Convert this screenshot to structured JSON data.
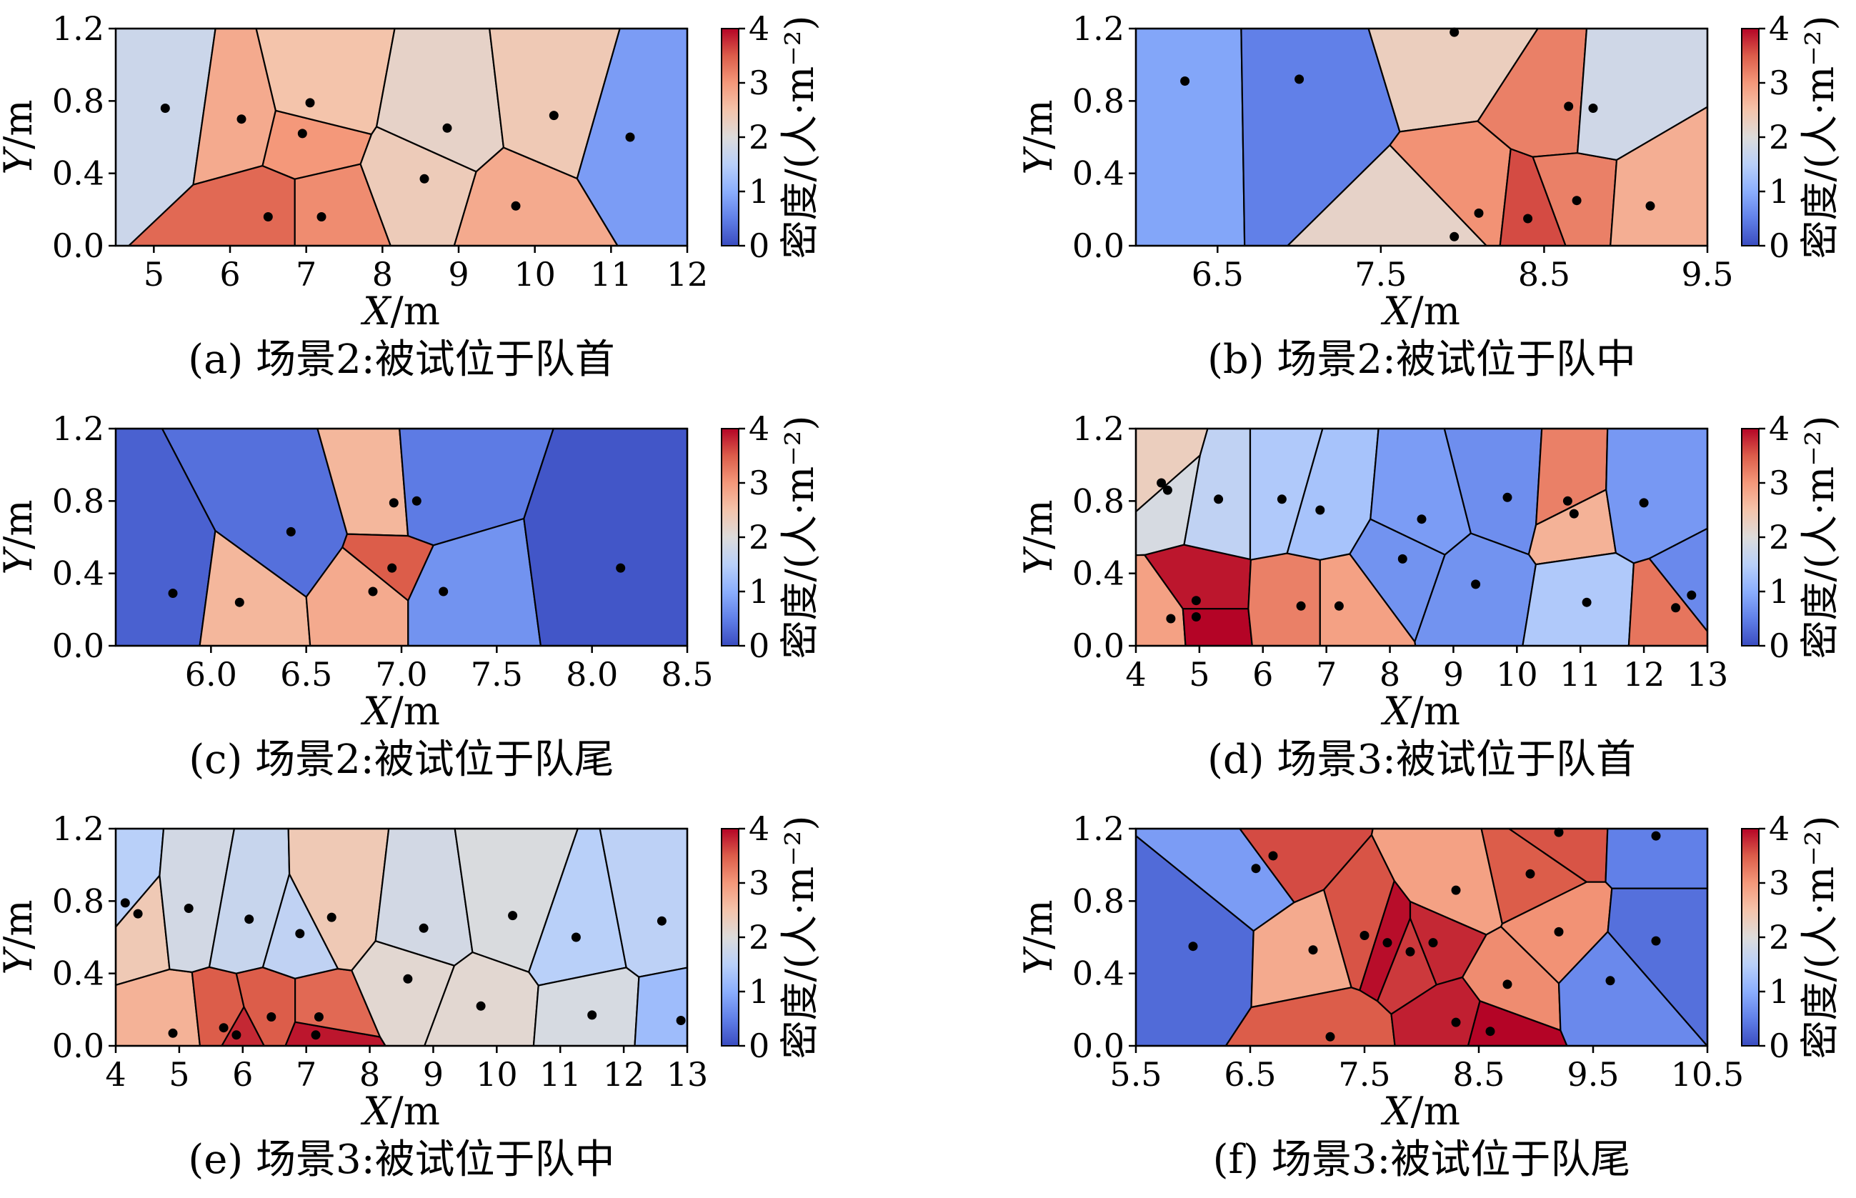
{
  "colormap": {
    "name": "coolwarm",
    "stops": [
      "#3a4cc0",
      "#6180e8",
      "#8caffd",
      "#b9d0f9",
      "#dddcdb",
      "#f4c4ab",
      "#f4987a",
      "#dc5d4a",
      "#b40426"
    ]
  },
  "chart_data": [
    {
      "type": "voronoi",
      "caption": "(a) 场景2:被试位于队首",
      "xlabel": "X/m",
      "ylabel": "Y/m",
      "xlim": [
        4.5,
        12
      ],
      "ylim": [
        0,
        1.2
      ],
      "xticks": [
        "5",
        "6",
        "7",
        "8",
        "9",
        "10",
        "11",
        "12"
      ],
      "yticks": [
        "0.0",
        "0.4",
        "0.8",
        "1.2"
      ],
      "colorbar": {
        "label": "密度/(人·m⁻²)",
        "range": [
          0,
          4
        ],
        "ticks": [
          "0",
          "1",
          "2",
          "3",
          "4"
        ]
      },
      "points": [
        {
          "x": 5.15,
          "y": 0.76,
          "density": 1.75
        },
        {
          "x": 6.15,
          "y": 0.7,
          "density": 2.8
        },
        {
          "x": 6.5,
          "y": 0.16,
          "density": 3.4
        },
        {
          "x": 6.95,
          "y": 0.62,
          "density": 3.0
        },
        {
          "x": 7.05,
          "y": 0.79,
          "density": 2.5
        },
        {
          "x": 7.2,
          "y": 0.16,
          "density": 3.1
        },
        {
          "x": 8.55,
          "y": 0.37,
          "density": 2.35
        },
        {
          "x": 8.85,
          "y": 0.65,
          "density": 2.2
        },
        {
          "x": 9.75,
          "y": 0.22,
          "density": 2.8
        },
        {
          "x": 10.25,
          "y": 0.72,
          "density": 2.4
        },
        {
          "x": 11.25,
          "y": 0.6,
          "density": 0.8
        }
      ]
    },
    {
      "type": "voronoi",
      "caption": "(b) 场景2:被试位于队中",
      "xlabel": "X/m",
      "ylabel": "Y/m",
      "xlim": [
        6,
        9.5
      ],
      "ylim": [
        0,
        1.2
      ],
      "xticks": [
        "6.5",
        "7.5",
        "8.5",
        "9.5"
      ],
      "yticks": [
        "0.0",
        "0.4",
        "0.8",
        "1.2"
      ],
      "colorbar": {
        "label": "密度/(人·m⁻²)",
        "range": [
          0,
          4
        ],
        "ticks": [
          "0",
          "1",
          "2",
          "3",
          "4"
        ]
      },
      "points": [
        {
          "x": 6.3,
          "y": 0.91,
          "density": 0.9
        },
        {
          "x": 7.0,
          "y": 0.92,
          "density": 0.5
        },
        {
          "x": 7.95,
          "y": 1.18,
          "density": 2.3
        },
        {
          "x": 7.95,
          "y": 0.05,
          "density": 2.2
        },
        {
          "x": 8.1,
          "y": 0.18,
          "density": 3.05
        },
        {
          "x": 8.4,
          "y": 0.15,
          "density": 3.6
        },
        {
          "x": 8.65,
          "y": 0.77,
          "density": 3.2
        },
        {
          "x": 8.7,
          "y": 0.25,
          "density": 3.2
        },
        {
          "x": 8.8,
          "y": 0.76,
          "density": 1.8
        },
        {
          "x": 9.15,
          "y": 0.22,
          "density": 2.75
        }
      ]
    },
    {
      "type": "voronoi",
      "caption": "(c) 场景2:被试位于队尾",
      "xlabel": "X/m",
      "ylabel": "Y/m",
      "xlim": [
        5.5,
        8.5
      ],
      "ylim": [
        0,
        1.2
      ],
      "xticks": [
        "6.0",
        "6.5",
        "7.0",
        "7.5",
        "8.0",
        "8.5"
      ],
      "yticks": [
        "0.0",
        "0.4",
        "0.8",
        "1.2"
      ],
      "colorbar": {
        "label": "密度/(人·m⁻²)",
        "range": [
          0,
          4
        ],
        "ticks": [
          "0",
          "1",
          "2",
          "3",
          "4"
        ]
      },
      "points": [
        {
          "x": 5.8,
          "y": 0.29,
          "density": 0.2
        },
        {
          "x": 6.15,
          "y": 0.24,
          "density": 2.65
        },
        {
          "x": 6.42,
          "y": 0.63,
          "density": 0.35
        },
        {
          "x": 6.85,
          "y": 0.3,
          "density": 2.8
        },
        {
          "x": 6.96,
          "y": 0.79,
          "density": 2.65
        },
        {
          "x": 7.08,
          "y": 0.8,
          "density": 0.45
        },
        {
          "x": 6.95,
          "y": 0.43,
          "density": 3.5
        },
        {
          "x": 7.22,
          "y": 0.3,
          "density": 0.7
        },
        {
          "x": 8.15,
          "y": 0.43,
          "density": 0.1
        }
      ]
    },
    {
      "type": "voronoi",
      "caption": "(d) 场景3:被试位于队首",
      "xlabel": "X/m",
      "ylabel": "Y/m",
      "xlim": [
        4,
        13
      ],
      "ylim": [
        0,
        1.2
      ],
      "xticks": [
        "4",
        "5",
        "6",
        "7",
        "8",
        "9",
        "10",
        "11",
        "12",
        "13"
      ],
      "yticks": [
        "0.0",
        "0.4",
        "0.8",
        "1.2"
      ],
      "colorbar": {
        "label": "密度/(人·m⁻²)",
        "range": [
          0,
          4
        ],
        "ticks": [
          "0",
          "1",
          "2",
          "3",
          "4"
        ]
      },
      "points": [
        {
          "x": 4.4,
          "y": 0.9,
          "density": 2.3
        },
        {
          "x": 4.5,
          "y": 0.86,
          "density": 1.9
        },
        {
          "x": 4.55,
          "y": 0.15,
          "density": 2.9
        },
        {
          "x": 4.95,
          "y": 0.25,
          "density": 3.9
        },
        {
          "x": 4.95,
          "y": 0.16,
          "density": 4.0
        },
        {
          "x": 5.3,
          "y": 0.81,
          "density": 1.6
        },
        {
          "x": 6.3,
          "y": 0.81,
          "density": 1.4
        },
        {
          "x": 6.6,
          "y": 0.22,
          "density": 3.2
        },
        {
          "x": 6.9,
          "y": 0.75,
          "density": 1.3
        },
        {
          "x": 7.2,
          "y": 0.22,
          "density": 2.9
        },
        {
          "x": 8.2,
          "y": 0.48,
          "density": 0.7
        },
        {
          "x": 8.5,
          "y": 0.7,
          "density": 0.8
        },
        {
          "x": 9.35,
          "y": 0.34,
          "density": 0.7
        },
        {
          "x": 9.85,
          "y": 0.82,
          "density": 0.65
        },
        {
          "x": 10.8,
          "y": 0.8,
          "density": 3.2
        },
        {
          "x": 10.9,
          "y": 0.73,
          "density": 2.7
        },
        {
          "x": 11.1,
          "y": 0.24,
          "density": 1.4
        },
        {
          "x": 12.0,
          "y": 0.79,
          "density": 0.75
        },
        {
          "x": 12.5,
          "y": 0.21,
          "density": 3.3
        },
        {
          "x": 12.75,
          "y": 0.28,
          "density": 0.6
        }
      ]
    },
    {
      "type": "voronoi",
      "caption": "(e) 场景3:被试位于队中",
      "xlabel": "X/m",
      "ylabel": "Y/m",
      "xlim": [
        4,
        13
      ],
      "ylim": [
        0,
        1.2
      ],
      "xticks": [
        "4",
        "5",
        "6",
        "7",
        "8",
        "9",
        "10",
        "11",
        "12",
        "13"
      ],
      "yticks": [
        "0.0",
        "0.4",
        "0.8",
        "1.2"
      ],
      "colorbar": {
        "label": "密度/(人·m⁻²)",
        "range": [
          0,
          4
        ],
        "ticks": [
          "0",
          "1",
          "2",
          "3",
          "4"
        ]
      },
      "points": [
        {
          "x": 4.15,
          "y": 0.79,
          "density": 1.5
        },
        {
          "x": 4.35,
          "y": 0.73,
          "density": 2.4
        },
        {
          "x": 4.9,
          "y": 0.07,
          "density": 2.7
        },
        {
          "x": 5.15,
          "y": 0.76,
          "density": 1.85
        },
        {
          "x": 5.7,
          "y": 0.1,
          "density": 3.5
        },
        {
          "x": 5.9,
          "y": 0.06,
          "density": 3.8
        },
        {
          "x": 6.1,
          "y": 0.7,
          "density": 1.7
        },
        {
          "x": 6.45,
          "y": 0.16,
          "density": 3.5
        },
        {
          "x": 6.9,
          "y": 0.62,
          "density": 1.6
        },
        {
          "x": 7.15,
          "y": 0.06,
          "density": 3.9
        },
        {
          "x": 7.2,
          "y": 0.16,
          "density": 3.4
        },
        {
          "x": 7.4,
          "y": 0.71,
          "density": 2.4
        },
        {
          "x": 8.6,
          "y": 0.37,
          "density": 2.1
        },
        {
          "x": 8.85,
          "y": 0.65,
          "density": 1.85
        },
        {
          "x": 9.75,
          "y": 0.22,
          "density": 2.1
        },
        {
          "x": 10.25,
          "y": 0.72,
          "density": 1.95
        },
        {
          "x": 11.25,
          "y": 0.6,
          "density": 1.5
        },
        {
          "x": 11.5,
          "y": 0.17,
          "density": 1.9
        },
        {
          "x": 12.6,
          "y": 0.69,
          "density": 1.55
        },
        {
          "x": 12.9,
          "y": 0.14,
          "density": 1.2
        }
      ]
    },
    {
      "type": "voronoi",
      "caption": "(f) 场景3:被试位于队尾",
      "xlabel": "X/m",
      "ylabel": "Y/m",
      "xlim": [
        5.5,
        10.5
      ],
      "ylim": [
        0,
        1.2
      ],
      "xticks": [
        "5.5",
        "6.5",
        "7.5",
        "8.5",
        "9.5",
        "10.5"
      ],
      "yticks": [
        "0.0",
        "0.4",
        "0.8",
        "1.2"
      ],
      "colorbar": {
        "label": "密度/(人·m⁻²)",
        "range": [
          0,
          4
        ],
        "ticks": [
          "0",
          "1",
          "2",
          "3",
          "4"
        ]
      },
      "points": [
        {
          "x": 6.0,
          "y": 0.55,
          "density": 0.3
        },
        {
          "x": 6.55,
          "y": 0.98,
          "density": 0.8
        },
        {
          "x": 6.7,
          "y": 1.05,
          "density": 3.6
        },
        {
          "x": 7.05,
          "y": 0.53,
          "density": 2.8
        },
        {
          "x": 7.2,
          "y": 0.05,
          "density": 3.5
        },
        {
          "x": 7.5,
          "y": 0.61,
          "density": 3.55
        },
        {
          "x": 7.7,
          "y": 0.57,
          "density": 3.95
        },
        {
          "x": 7.9,
          "y": 0.52,
          "density": 3.7
        },
        {
          "x": 8.1,
          "y": 0.57,
          "density": 3.8
        },
        {
          "x": 8.3,
          "y": 0.13,
          "density": 3.85
        },
        {
          "x": 8.3,
          "y": 0.86,
          "density": 2.9
        },
        {
          "x": 8.6,
          "y": 0.08,
          "density": 4.0
        },
        {
          "x": 8.75,
          "y": 0.34,
          "density": 3.1
        },
        {
          "x": 8.95,
          "y": 0.95,
          "density": 3.5
        },
        {
          "x": 9.2,
          "y": 1.18,
          "density": 3.55
        },
        {
          "x": 9.2,
          "y": 0.63,
          "density": 3.05
        },
        {
          "x": 9.65,
          "y": 0.36,
          "density": 0.6
        },
        {
          "x": 10.05,
          "y": 1.16,
          "density": 0.5
        },
        {
          "x": 10.05,
          "y": 0.58,
          "density": 0.35
        }
      ]
    }
  ]
}
